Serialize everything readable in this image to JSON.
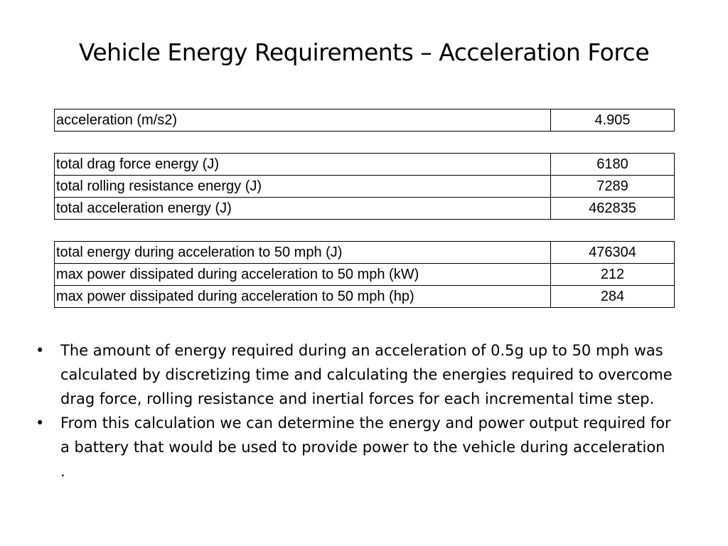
{
  "slide": {
    "title": "Vehicle Energy Requirements – Acceleration Force"
  },
  "table": {
    "groups": [
      {
        "rows": [
          {
            "label": "acceleration (m/s2)",
            "value": "4.905"
          }
        ]
      },
      {
        "rows": [
          {
            "label": "total drag force energy (J)",
            "value": "6180"
          },
          {
            "label": "total rolling resistance energy (J)",
            "value": "7289"
          },
          {
            "label": "total acceleration energy (J)",
            "value": "462835"
          }
        ]
      },
      {
        "rows": [
          {
            "label": "total energy during acceleration to 50 mph (J)",
            "value": "476304"
          },
          {
            "label": "max power dissipated during acceleration to 50 mph (kW)",
            "value": "212"
          },
          {
            "label": "max power dissipated during acceleration to 50 mph (hp)",
            "value": "284"
          }
        ]
      }
    ]
  },
  "bullets": {
    "marker": "•",
    "items": [
      "The amount of energy required during an acceleration of 0.5g up to 50 mph was calculated by discretizing time and calculating the energies required to overcome drag force, rolling resistance and inertial forces for each incremental time step.",
      "From this calculation we can determine the energy and power output required for a battery that would be used to provide power to the vehicle during acceleration ."
    ]
  }
}
